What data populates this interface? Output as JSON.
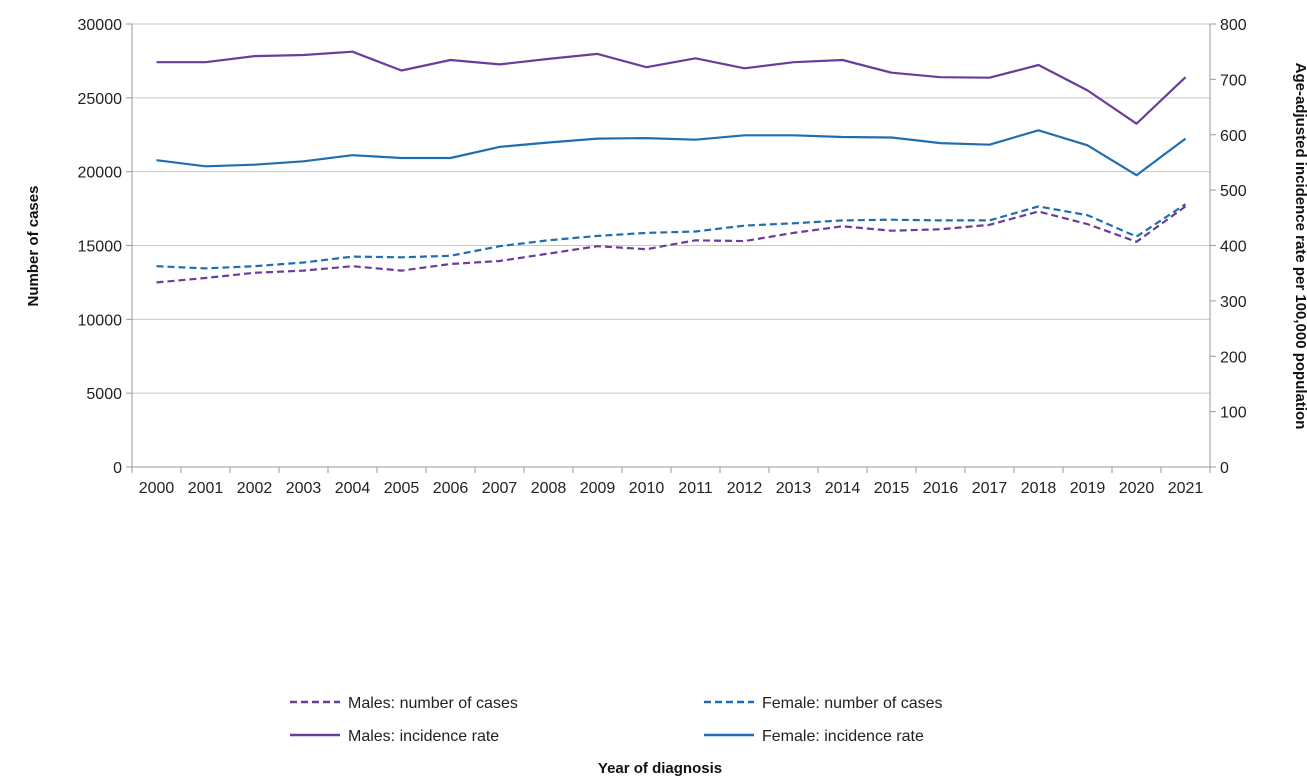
{
  "chart_data": {
    "type": "line",
    "xlabel": "Year of diagnosis",
    "ylabel": "Number of cases",
    "y2label": "Age-adjusted incidence rate per 100,000 population",
    "x": [
      "2000",
      "2001",
      "2002",
      "2003",
      "2004",
      "2005",
      "2006",
      "2007",
      "2008",
      "2009",
      "2010",
      "2011",
      "2012",
      "2013",
      "2014",
      "2015",
      "2016",
      "2017",
      "2018",
      "2019",
      "2020",
      "2021"
    ],
    "ylim": [
      0,
      30000
    ],
    "yticks": [
      "0",
      "5000",
      "10000",
      "15000",
      "20000",
      "25000",
      "30000"
    ],
    "y2lim": [
      0,
      800
    ],
    "y2ticks": [
      "0",
      "100",
      "200",
      "300",
      "400",
      "500",
      "600",
      "700",
      "800"
    ],
    "grid": true,
    "legend_position": "bottom",
    "series": [
      {
        "name": "Males: number of cases",
        "axis": "left",
        "style": "dashed",
        "color": "#6a3d9a",
        "values": [
          12500,
          12800,
          13150,
          13300,
          13600,
          13300,
          13750,
          13950,
          14450,
          14950,
          14750,
          15350,
          15300,
          15850,
          16300,
          16000,
          16100,
          16400,
          17300,
          16450,
          15250,
          17650
        ]
      },
      {
        "name": "Female: number of cases",
        "axis": "left",
        "style": "dashed",
        "color": "#1f6fb0",
        "values": [
          13600,
          13450,
          13600,
          13850,
          14250,
          14200,
          14300,
          14950,
          15350,
          15650,
          15850,
          15950,
          16350,
          16500,
          16700,
          16750,
          16700,
          16700,
          17650,
          17050,
          15600,
          17800
        ]
      },
      {
        "name": "Males: incidence rate",
        "axis": "right",
        "style": "solid",
        "color": "#6a3d9a",
        "values": [
          731,
          731,
          742,
          744,
          750,
          716,
          735,
          727,
          737,
          746,
          722,
          738,
          720,
          731,
          735,
          712,
          704,
          703,
          726,
          680,
          620,
          704
        ]
      },
      {
        "name": "Female: incidence rate",
        "axis": "right",
        "style": "solid",
        "color": "#1f6fb0",
        "values": [
          554,
          543,
          546,
          552,
          563,
          558,
          558,
          578,
          586,
          593,
          594,
          591,
          599,
          599,
          596,
          595,
          585,
          582,
          608,
          581,
          527,
          593
        ]
      }
    ]
  }
}
